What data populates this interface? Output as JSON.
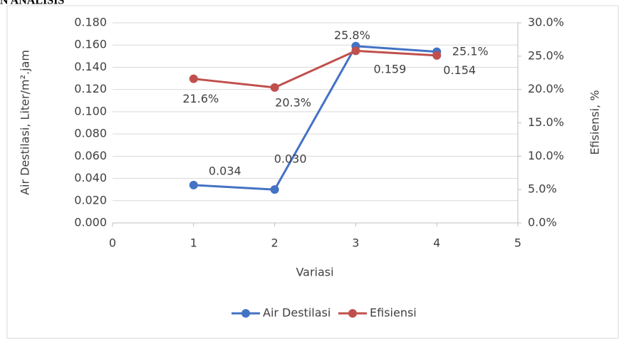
{
  "chart_data": {
    "type": "line",
    "title": "N ANALISIS",
    "x_label": "Variasi",
    "y_label": "Air Destilasi, Liter/m².jam",
    "y2_label": "Efisiensi, %",
    "x": [
      1,
      2,
      3,
      4
    ],
    "series": [
      {
        "name": "Air Destilasi",
        "color": "#4472c4",
        "values": [
          0.034,
          0.03,
          0.159,
          0.154
        ],
        "value_labels": [
          "0.034",
          "0.030",
          "0.159",
          "0.154"
        ]
      },
      {
        "name": "Efisiensi",
        "color": "#c0504d",
        "axis": "y2",
        "values": [
          21.6,
          20.3,
          25.8,
          25.1
        ],
        "value_labels": [
          "21.6%",
          "20.3%",
          "25.8%",
          "25.1%"
        ]
      }
    ],
    "xlim": [
      0,
      5
    ],
    "xticks": [
      0,
      1,
      2,
      3,
      4,
      5
    ],
    "ylim": [
      0,
      0.18
    ],
    "yticks": [
      {
        "value": 0,
        "label": "0.000"
      },
      {
        "value": 0.02,
        "label": "0.020"
      },
      {
        "value": 0.04,
        "label": "0.040"
      },
      {
        "value": 0.06,
        "label": "0.060"
      },
      {
        "value": 0.08,
        "label": "0.080"
      },
      {
        "value": 0.1,
        "label": "0.100"
      },
      {
        "value": 0.12,
        "label": "0.120"
      },
      {
        "value": 0.14,
        "label": "0.140"
      },
      {
        "value": 0.16,
        "label": "0.160"
      },
      {
        "value": 0.18,
        "label": "0.180"
      }
    ],
    "y2lim": [
      0,
      30
    ],
    "y2ticks": [
      {
        "value": 0,
        "label": "0.0%"
      },
      {
        "value": 5,
        "label": "5.0%"
      },
      {
        "value": 10,
        "label": "10.0%"
      },
      {
        "value": 15,
        "label": "15.0%"
      },
      {
        "value": 20,
        "label": "20.0%"
      },
      {
        "value": 25,
        "label": "25.0%"
      },
      {
        "value": 30,
        "label": "30.0%"
      }
    ],
    "grid": true,
    "legend": "bottom"
  }
}
